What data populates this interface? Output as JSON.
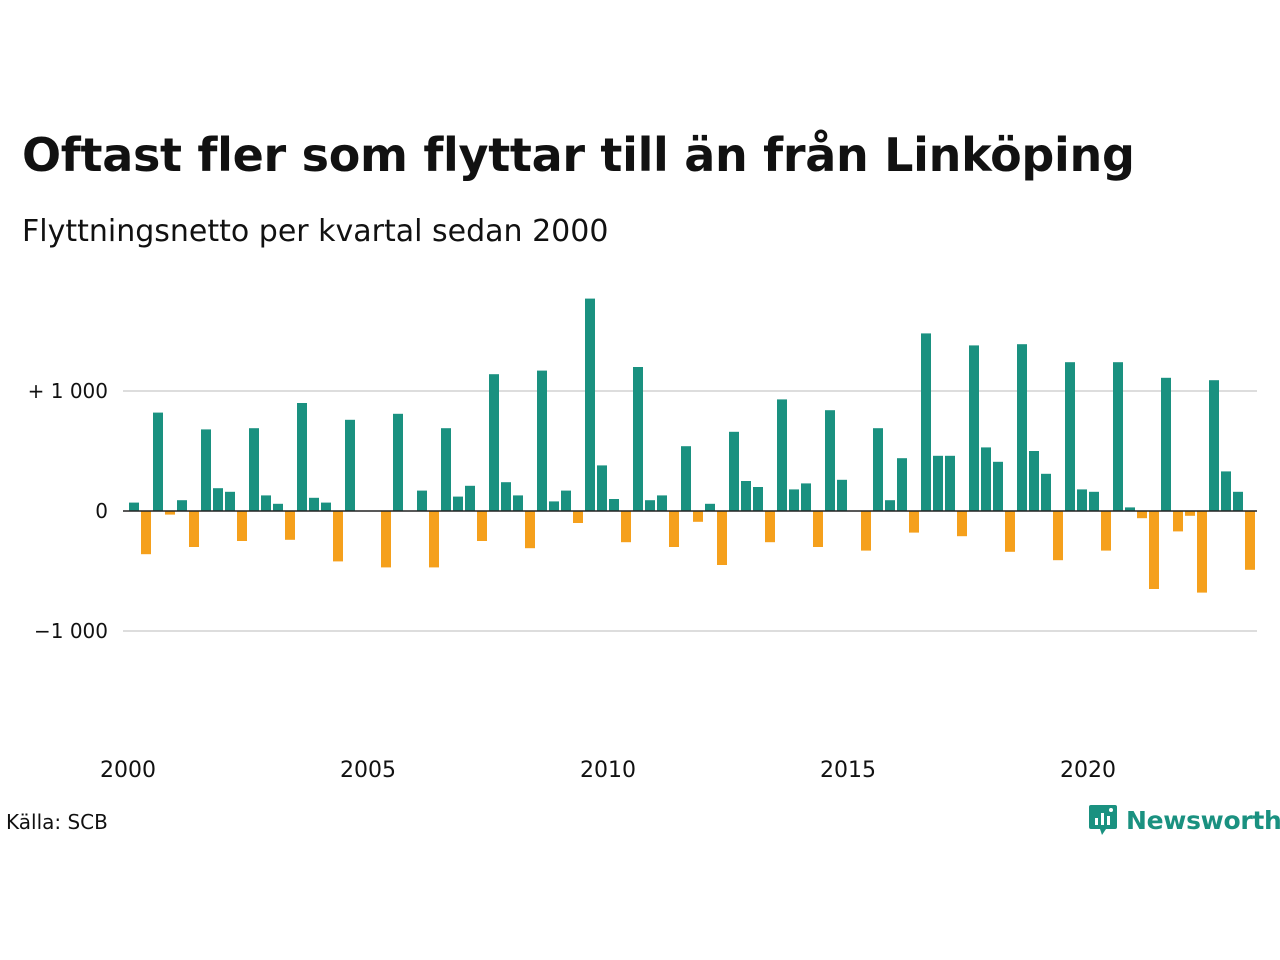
{
  "title": "Oftast fler som flyttar till än från Linköping",
  "subtitle": "Flyttningsnetto per kvartal sedan 2000",
  "source": "Källa: SCB",
  "brand": "Newsworthy",
  "colors": {
    "positive": "#1a9180",
    "negative": "#f5a01c",
    "grid": "#dddddd",
    "zero_line": "#222222",
    "brand": "#1a9180"
  },
  "chart_data": {
    "type": "bar",
    "ylim": [
      -1800,
      1800
    ],
    "grid": true,
    "y_ticks": [
      1000,
      0,
      -1000
    ],
    "y_tick_labels": [
      "+ 1 000",
      "0",
      "−1 000"
    ],
    "x_ticks": [
      2000,
      2005,
      2010,
      2015,
      2020
    ],
    "x_tick_labels": [
      "2000",
      "2005",
      "2010",
      "2015",
      "2020"
    ],
    "start_year": 2000,
    "values": [
      70,
      -360,
      820,
      -30,
      90,
      -300,
      680,
      190,
      160,
      -250,
      690,
      130,
      60,
      -240,
      900,
      110,
      70,
      -420,
      760,
      0,
      0,
      -470,
      810,
      0,
      170,
      -470,
      690,
      120,
      210,
      -250,
      1140,
      240,
      130,
      -310,
      1170,
      80,
      170,
      -100,
      1770,
      380,
      100,
      -260,
      1200,
      90,
      130,
      -300,
      540,
      -90,
      60,
      -450,
      660,
      250,
      200,
      -260,
      930,
      180,
      230,
      -300,
      840,
      260,
      0,
      -330,
      690,
      90,
      440,
      -180,
      1480,
      460,
      460,
      -210,
      1380,
      530,
      410,
      -340,
      1390,
      500,
      310,
      -410,
      1240,
      180,
      160,
      -330,
      1240,
      30,
      -60,
      -650,
      1110,
      -170,
      -40,
      -680,
      1090,
      330,
      160,
      -490
    ]
  }
}
